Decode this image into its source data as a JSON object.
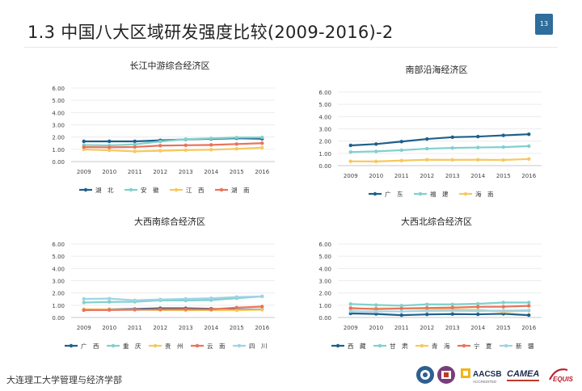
{
  "slide": {
    "title": "1.3  中国八大区域研发强度比较(2009-2016)-2",
    "page_number": "13",
    "footer": "大连理工大学管理与经济学部",
    "logos": [
      "AACSB",
      "ACCREDITED",
      "CAMEA",
      "EQUIS"
    ]
  },
  "chart_data": [
    {
      "type": "line",
      "title": "长江中游综合经济区",
      "x": [
        "2009",
        "2010",
        "2011",
        "2012",
        "2013",
        "2014",
        "2015",
        "2016"
      ],
      "yticks": [
        "0.00",
        "1.00",
        "2.00",
        "3.00",
        "4.00",
        "5.00",
        "6.00"
      ],
      "ylim": [
        0,
        6
      ],
      "legend_position": "bottom",
      "series": [
        {
          "name": "湖　北",
          "color": "#1f5f8b",
          "values": [
            1.65,
            1.65,
            1.65,
            1.73,
            1.81,
            1.85,
            1.9,
            1.86
          ]
        },
        {
          "name": "安　徽",
          "color": "#7fd1cc",
          "values": [
            1.35,
            1.32,
            1.4,
            1.64,
            1.83,
            1.89,
            1.96,
            1.97
          ]
        },
        {
          "name": "江　西",
          "color": "#f6c85f",
          "values": [
            0.99,
            0.92,
            0.83,
            0.88,
            0.94,
            0.97,
            1.04,
            1.13
          ]
        },
        {
          "name": "湖　南",
          "color": "#e8735a",
          "values": [
            1.18,
            1.16,
            1.19,
            1.3,
            1.33,
            1.36,
            1.43,
            1.5
          ]
        }
      ]
    },
    {
      "type": "line",
      "title": "南部沿海经济区",
      "x": [
        "2009",
        "2010",
        "2011",
        "2012",
        "2013",
        "2014",
        "2015",
        "2016"
      ],
      "yticks": [
        "0.00",
        "1.00",
        "2.00",
        "3.00",
        "4.00",
        "5.00",
        "6.00"
      ],
      "ylim": [
        0,
        6
      ],
      "legend_position": "bottom",
      "series": [
        {
          "name": "广　东",
          "color": "#1f5f8b",
          "values": [
            1.65,
            1.76,
            1.96,
            2.17,
            2.32,
            2.37,
            2.47,
            2.56
          ]
        },
        {
          "name": "福　建",
          "color": "#7fd1cc",
          "values": [
            1.11,
            1.16,
            1.26,
            1.38,
            1.44,
            1.48,
            1.51,
            1.59
          ]
        },
        {
          "name": "海　南",
          "color": "#f6c85f",
          "values": [
            0.35,
            0.34,
            0.41,
            0.48,
            0.47,
            0.48,
            0.46,
            0.54
          ]
        }
      ]
    },
    {
      "type": "line",
      "title": "大西南综合经济区",
      "x": [
        "2009",
        "2010",
        "2011",
        "2012",
        "2013",
        "2014",
        "2015",
        "2016"
      ],
      "yticks": [
        "0.00",
        "1.00",
        "2.00",
        "3.00",
        "4.00",
        "5.00",
        "6.00"
      ],
      "ylim": [
        0,
        6
      ],
      "legend_position": "bottom",
      "series": [
        {
          "name": "广　西",
          "color": "#1f5f8b",
          "values": [
            0.61,
            0.66,
            0.69,
            0.75,
            0.75,
            0.71,
            0.63,
            0.65
          ]
        },
        {
          "name": "重　庆",
          "color": "#7fd1cc",
          "values": [
            1.22,
            1.27,
            1.28,
            1.4,
            1.39,
            1.42,
            1.57,
            1.72
          ]
        },
        {
          "name": "贵　州",
          "color": "#f6c85f",
          "values": [
            0.68,
            0.65,
            0.64,
            0.61,
            0.59,
            0.6,
            0.59,
            0.63
          ]
        },
        {
          "name": "云　南",
          "color": "#e8735a",
          "values": [
            0.6,
            0.61,
            0.63,
            0.67,
            0.68,
            0.67,
            0.8,
            0.89
          ]
        },
        {
          "name": "四　川",
          "color": "#9fd3e6",
          "values": [
            1.52,
            1.54,
            1.4,
            1.47,
            1.52,
            1.57,
            1.67,
            1.72
          ]
        }
      ]
    },
    {
      "type": "line",
      "title": "大西北综合经济区",
      "x": [
        "2009",
        "2010",
        "2011",
        "2012",
        "2013",
        "2014",
        "2015",
        "2016"
      ],
      "yticks": [
        "0.00",
        "1.00",
        "2.00",
        "3.00",
        "4.00",
        "5.00",
        "6.00"
      ],
      "ylim": [
        0,
        6
      ],
      "legend_position": "bottom",
      "series": [
        {
          "name": "西　藏",
          "color": "#1f5f8b",
          "values": [
            0.33,
            0.29,
            0.19,
            0.25,
            0.28,
            0.26,
            0.3,
            0.19
          ]
        },
        {
          "name": "甘　肃",
          "color": "#7fd1cc",
          "values": [
            1.1,
            1.02,
            0.97,
            1.07,
            1.07,
            1.12,
            1.22,
            1.22
          ]
        },
        {
          "name": "青　海",
          "color": "#f6c85f",
          "values": [
            0.7,
            0.74,
            0.75,
            0.69,
            0.65,
            0.62,
            0.48,
            0.54
          ]
        },
        {
          "name": "宁　夏",
          "color": "#e8735a",
          "values": [
            0.77,
            0.68,
            0.73,
            0.78,
            0.81,
            0.87,
            0.88,
            0.95
          ]
        },
        {
          "name": "新　疆",
          "color": "#9fd3e6",
          "values": [
            0.51,
            0.49,
            0.5,
            0.53,
            0.54,
            0.53,
            0.56,
            0.59
          ]
        }
      ]
    }
  ]
}
